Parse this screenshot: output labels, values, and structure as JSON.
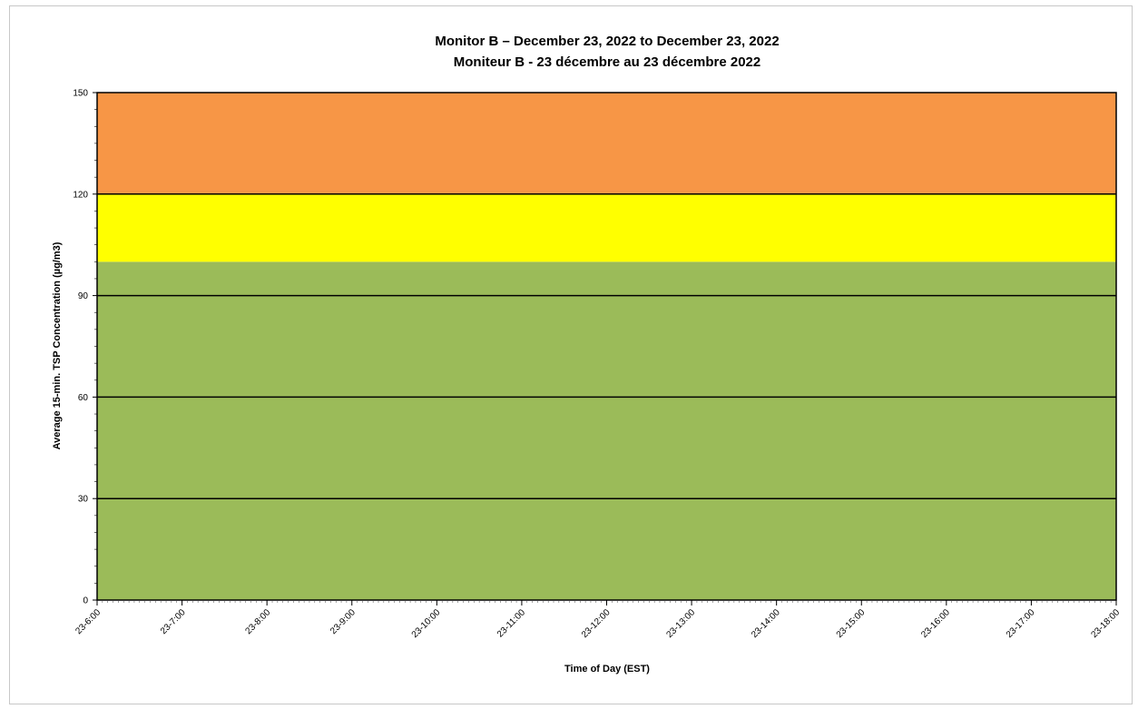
{
  "chart_data": {
    "type": "area",
    "title": "Monitor B – December 23, 2022 to December 23, 2022",
    "subtitle": "Moniteur B - 23 décembre au 23 décembre 2022",
    "xlabel": "Time of Day (EST)",
    "ylabel": "Average 15-min. TSP Concentration (µg/m3)",
    "ylim": [
      0,
      150
    ],
    "yticks": [
      0,
      30,
      60,
      90,
      120,
      150
    ],
    "x_categories": [
      "23-6:00",
      "23-7:00",
      "23-8:00",
      "23-9:00",
      "23-10:00",
      "23-11:00",
      "23-12:00",
      "23-13:00",
      "23-14:00",
      "23-15:00",
      "23-16:00",
      "23-17:00",
      "23-18:00"
    ],
    "bands": [
      {
        "from": 0,
        "to": 100,
        "color": "#9BBB59"
      },
      {
        "from": 100,
        "to": 120,
        "color": "#FFFF00"
      },
      {
        "from": 120,
        "to": 150,
        "color": "#F79646"
      }
    ],
    "gridlines": [
      30,
      60,
      90,
      120
    ],
    "series": []
  }
}
